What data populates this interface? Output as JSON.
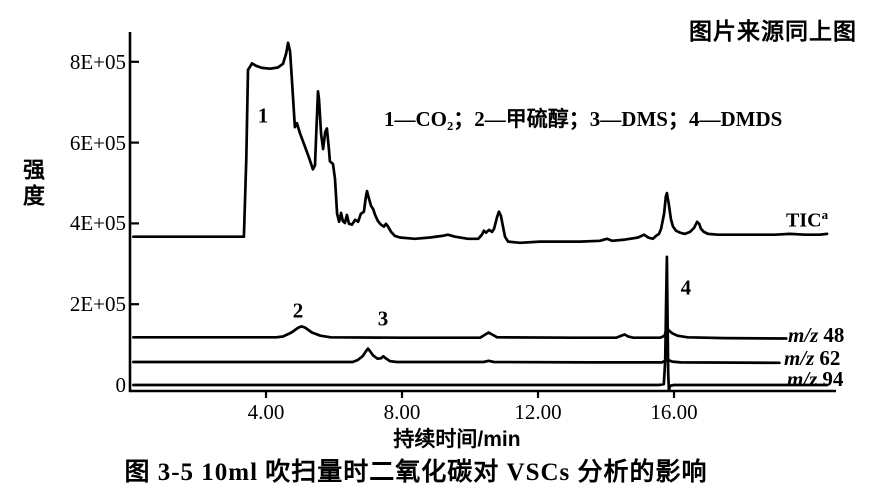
{
  "figure": {
    "source_note": "图片来源同上图",
    "caption": "图 3-5  10ml 吹扫量时二氧化碳对 VSCs 分析的影响"
  },
  "chart_data": {
    "type": "line",
    "title": "",
    "xlabel": "持续时间/min",
    "ylabel": "强度",
    "xlim": [
      0,
      20.8
    ],
    "ylim": [
      0,
      8.8
    ],
    "grid": false,
    "y_tick_unit": "E+05",
    "annotation_legend": "1—CO₂；2—甲硫醇；3—DMS；4—DMDS",
    "x_ticks": [
      {
        "t": 4,
        "label": "4.00"
      },
      {
        "t": 8,
        "label": "8.00"
      },
      {
        "t": 12,
        "label": "12.00"
      },
      {
        "t": 16,
        "label": "16.00"
      }
    ],
    "y_ticks": [
      {
        "v": 8,
        "label": "8E+05"
      },
      {
        "v": 6,
        "label": "6E+05"
      },
      {
        "v": 4,
        "label": "4E+05"
      },
      {
        "v": 2,
        "label": "2E+05"
      },
      {
        "v": 0,
        "label": "0"
      }
    ],
    "peak_annotations": [
      {
        "label": "1",
        "compound": "CO₂",
        "t": 3.91,
        "i": 6.66
      },
      {
        "label": "2",
        "compound": "甲硫醇",
        "t": 4.94,
        "i": 1.83
      },
      {
        "label": "3",
        "compound": "DMS",
        "t": 7.44,
        "i": 1.63
      },
      {
        "label": "4",
        "compound": "DMDS",
        "t": 16.35,
        "i": 2.4
      }
    ],
    "series": [
      {
        "name": "TIC",
        "label_text": "TIC",
        "label_sup": "a",
        "points": [
          [
            0.1,
            3.67
          ],
          [
            3.35,
            3.67
          ],
          [
            3.42,
            5.6
          ],
          [
            3.47,
            7.8
          ],
          [
            3.59,
            7.96
          ],
          [
            3.71,
            7.9
          ],
          [
            3.88,
            7.85
          ],
          [
            4.12,
            7.83
          ],
          [
            4.35,
            7.86
          ],
          [
            4.5,
            7.95
          ],
          [
            4.59,
            8.2
          ],
          [
            4.65,
            8.47
          ],
          [
            4.71,
            8.25
          ],
          [
            4.76,
            7.6
          ],
          [
            4.82,
            6.77
          ],
          [
            4.85,
            6.38
          ],
          [
            4.91,
            6.48
          ],
          [
            5.0,
            6.23
          ],
          [
            5.15,
            5.89
          ],
          [
            5.26,
            5.64
          ],
          [
            5.38,
            5.34
          ],
          [
            5.44,
            5.44
          ],
          [
            5.47,
            6.08
          ],
          [
            5.53,
            7.27
          ],
          [
            5.56,
            7.07
          ],
          [
            5.62,
            6.21
          ],
          [
            5.68,
            5.84
          ],
          [
            5.74,
            6.26
          ],
          [
            5.79,
            6.35
          ],
          [
            5.85,
            5.84
          ],
          [
            5.88,
            5.54
          ],
          [
            5.97,
            5.47
          ],
          [
            6.03,
            5.1
          ],
          [
            6.09,
            4.24
          ],
          [
            6.15,
            4.04
          ],
          [
            6.21,
            4.26
          ],
          [
            6.26,
            4.06
          ],
          [
            6.32,
            4.01
          ],
          [
            6.38,
            4.21
          ],
          [
            6.44,
            3.99
          ],
          [
            6.53,
            3.97
          ],
          [
            6.62,
            4.09
          ],
          [
            6.71,
            4.04
          ],
          [
            6.79,
            4.24
          ],
          [
            6.88,
            4.29
          ],
          [
            6.94,
            4.68
          ],
          [
            6.97,
            4.8
          ],
          [
            7.03,
            4.61
          ],
          [
            7.09,
            4.43
          ],
          [
            7.15,
            4.36
          ],
          [
            7.21,
            4.21
          ],
          [
            7.29,
            4.06
          ],
          [
            7.38,
            3.97
          ],
          [
            7.47,
            3.92
          ],
          [
            7.53,
            3.99
          ],
          [
            7.59,
            3.92
          ],
          [
            7.68,
            3.79
          ],
          [
            7.79,
            3.69
          ],
          [
            7.94,
            3.65
          ],
          [
            8.38,
            3.62
          ],
          [
            8.82,
            3.65
          ],
          [
            9.18,
            3.69
          ],
          [
            9.35,
            3.72
          ],
          [
            9.56,
            3.67
          ],
          [
            9.94,
            3.62
          ],
          [
            10.24,
            3.62
          ],
          [
            10.35,
            3.72
          ],
          [
            10.41,
            3.82
          ],
          [
            10.47,
            3.77
          ],
          [
            10.56,
            3.84
          ],
          [
            10.65,
            3.79
          ],
          [
            10.71,
            3.87
          ],
          [
            10.79,
            4.14
          ],
          [
            10.85,
            4.29
          ],
          [
            10.91,
            4.19
          ],
          [
            10.97,
            3.92
          ],
          [
            11.03,
            3.67
          ],
          [
            11.12,
            3.55
          ],
          [
            11.47,
            3.52
          ],
          [
            12.06,
            3.55
          ],
          [
            12.65,
            3.55
          ],
          [
            13.24,
            3.55
          ],
          [
            13.82,
            3.57
          ],
          [
            14.03,
            3.62
          ],
          [
            14.18,
            3.57
          ],
          [
            14.56,
            3.6
          ],
          [
            14.94,
            3.65
          ],
          [
            15.12,
            3.72
          ],
          [
            15.24,
            3.65
          ],
          [
            15.38,
            3.62
          ],
          [
            15.47,
            3.69
          ],
          [
            15.56,
            3.74
          ],
          [
            15.62,
            3.87
          ],
          [
            15.71,
            4.24
          ],
          [
            15.76,
            4.66
          ],
          [
            15.79,
            4.75
          ],
          [
            15.85,
            4.46
          ],
          [
            15.91,
            4.11
          ],
          [
            15.97,
            3.92
          ],
          [
            16.06,
            3.82
          ],
          [
            16.18,
            3.77
          ],
          [
            16.32,
            3.74
          ],
          [
            16.47,
            3.79
          ],
          [
            16.59,
            3.89
          ],
          [
            16.68,
            4.04
          ],
          [
            16.74,
            3.99
          ],
          [
            16.79,
            3.87
          ],
          [
            16.88,
            3.79
          ],
          [
            17.0,
            3.74
          ],
          [
            17.29,
            3.72
          ],
          [
            17.65,
            3.72
          ],
          [
            18.09,
            3.72
          ],
          [
            18.53,
            3.72
          ],
          [
            18.97,
            3.72
          ],
          [
            19.41,
            3.74
          ],
          [
            19.85,
            3.72
          ],
          [
            20.29,
            3.72
          ],
          [
            20.5,
            3.74
          ]
        ]
      },
      {
        "name": "m/z 48",
        "label_italic": "m/z",
        "label_num": "48",
        "points": [
          [
            0.1,
            1.18
          ],
          [
            4.3,
            1.18
          ],
          [
            4.5,
            1.2
          ],
          [
            4.75,
            1.3
          ],
          [
            4.95,
            1.42
          ],
          [
            5.05,
            1.45
          ],
          [
            5.15,
            1.42
          ],
          [
            5.35,
            1.3
          ],
          [
            5.6,
            1.22
          ],
          [
            5.9,
            1.18
          ],
          [
            8.0,
            1.17
          ],
          [
            10.3,
            1.17
          ],
          [
            10.45,
            1.25
          ],
          [
            10.55,
            1.3
          ],
          [
            10.65,
            1.25
          ],
          [
            10.8,
            1.18
          ],
          [
            13.0,
            1.17
          ],
          [
            14.3,
            1.17
          ],
          [
            14.45,
            1.22
          ],
          [
            14.55,
            1.25
          ],
          [
            14.65,
            1.2
          ],
          [
            14.8,
            1.17
          ],
          [
            15.6,
            1.17
          ],
          [
            15.72,
            1.22
          ],
          [
            15.79,
            1.42
          ],
          [
            15.85,
            1.35
          ],
          [
            15.95,
            1.28
          ],
          [
            16.1,
            1.22
          ],
          [
            16.4,
            1.18
          ],
          [
            17.5,
            1.16
          ],
          [
            19.3,
            1.15
          ]
        ]
      },
      {
        "name": "m/z 62",
        "label_italic": "m/z",
        "label_num": "62",
        "points": [
          [
            0.1,
            0.57
          ],
          [
            3.0,
            0.57
          ],
          [
            6.55,
            0.57
          ],
          [
            6.7,
            0.62
          ],
          [
            6.85,
            0.72
          ],
          [
            6.95,
            0.85
          ],
          [
            7.0,
            0.9
          ],
          [
            7.06,
            0.84
          ],
          [
            7.15,
            0.73
          ],
          [
            7.28,
            0.65
          ],
          [
            7.38,
            0.66
          ],
          [
            7.45,
            0.71
          ],
          [
            7.52,
            0.66
          ],
          [
            7.65,
            0.59
          ],
          [
            7.85,
            0.57
          ],
          [
            10.4,
            0.57
          ],
          [
            10.55,
            0.6
          ],
          [
            10.7,
            0.57
          ],
          [
            13.5,
            0.56
          ],
          [
            15.65,
            0.56
          ],
          [
            15.79,
            0.63
          ],
          [
            15.95,
            0.58
          ],
          [
            16.2,
            0.56
          ],
          [
            19.1,
            0.55
          ]
        ]
      },
      {
        "name": "m/z 94",
        "label_italic": "m/z",
        "label_num": "94",
        "points": [
          [
            0.1,
            0.0
          ],
          [
            5.0,
            0.0
          ],
          [
            10.0,
            0.0
          ],
          [
            15.55,
            0.0
          ],
          [
            15.7,
            0.02
          ],
          [
            15.74,
            0.6
          ],
          [
            15.77,
            2.2
          ],
          [
            15.79,
            3.17
          ],
          [
            15.81,
            1.8
          ],
          [
            15.83,
            0.3
          ],
          [
            15.85,
            -0.14
          ],
          [
            15.88,
            -0.02
          ],
          [
            16.0,
            0.0
          ],
          [
            18.0,
            0.0
          ],
          [
            20.5,
            0.0
          ]
        ]
      }
    ]
  }
}
